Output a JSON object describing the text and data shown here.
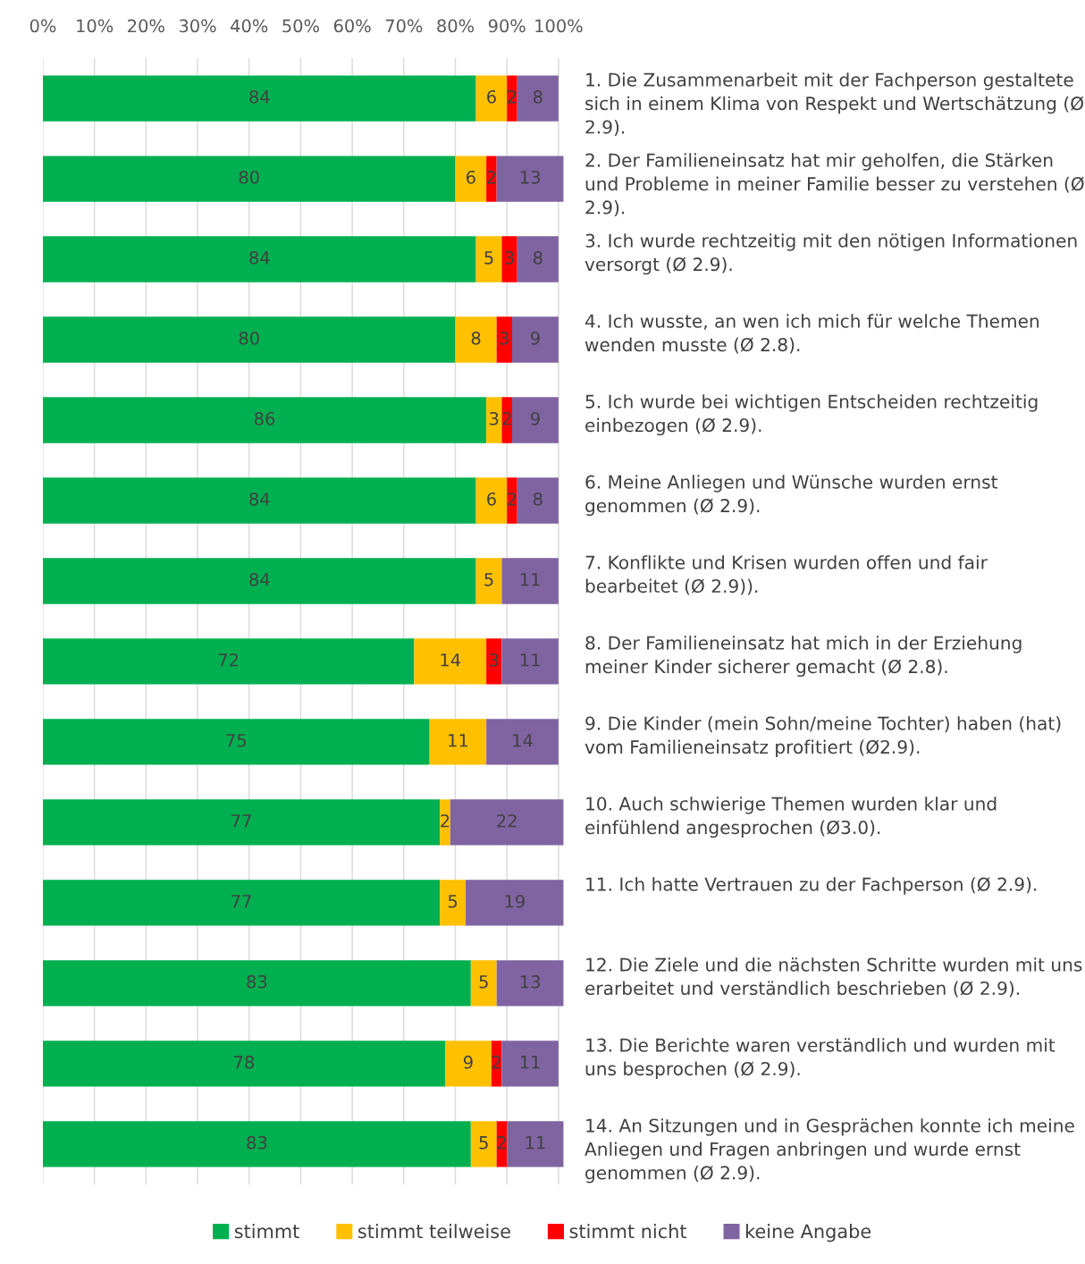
{
  "chart_data": {
    "type": "bar",
    "orientation": "horizontal",
    "stacked": true,
    "data_labels": true,
    "grid": "x",
    "legend": "bottom",
    "categories": [
      "1. Die Zusammenarbeit mit der Fachperson gestaltete sich in einem Klima von Respekt und Wertschätzung (Ø 2.9).",
      "2. Der Familieneinsatz hat mir geholfen, die Stärken und Probleme in meiner Familie besser zu verstehen (Ø 2.9).",
      "3. Ich wurde rechtzeitig mit den nötigen Informationen versorgt (Ø 2.9).",
      "4. Ich wusste, an wen ich mich für welche Themen wenden musste (Ø 2.8).",
      "5. Ich wurde bei wichtigen Entscheiden rechtzeitig einbezogen (Ø 2.9).",
      "6. Meine Anliegen und Wünsche wurden ernst genommen (Ø 2.9).",
      "7. Konflikte und Krisen wurden offen und fair bearbeitet (Ø 2.9)).",
      "8. Der Familieneinsatz hat mich in der Erziehung meiner Kinder sicherer gemacht (Ø 2.8).",
      "9. Die Kinder (mein Sohn/meine Tochter) haben (hat) vom Familieneinsatz profitiert (Ø2.9).",
      "10. Auch schwierige Themen wurden klar und einfühlend angesprochen (Ø3.0).",
      "11. Ich hatte Vertrauen zu der Fachperson (Ø 2.9).",
      "12. Die Ziele und die nächsten Schritte wurden mit uns erarbeitet und verständlich beschrieben (Ø 2.9).",
      "13. Die Berichte waren verständlich und wurden mit uns besprochen (Ø 2.9).",
      "14. An Sitzungen und in Gesprächen konnte ich meine Anliegen und Fragen anbringen und wurde ernst genommen (Ø 2.9)."
    ],
    "series": [
      {
        "name": "stimmt",
        "color": "#00b050",
        "values": [
          84,
          80,
          84,
          80,
          86,
          84,
          84,
          72,
          75,
          77,
          77,
          83,
          78,
          83
        ]
      },
      {
        "name": "stimmt teilweise",
        "color": "#ffc000",
        "values": [
          6,
          6,
          5,
          8,
          3,
          6,
          5,
          14,
          11,
          2,
          5,
          5,
          9,
          5
        ]
      },
      {
        "name": "stimmt nicht",
        "color": "#ff0000",
        "values": [
          2,
          2,
          3,
          3,
          2,
          2,
          null,
          3,
          null,
          null,
          null,
          null,
          2,
          2
        ]
      },
      {
        "name": "keine Angabe",
        "color": "#8064a2",
        "values": [
          8,
          13,
          8,
          9,
          9,
          8,
          11,
          11,
          14,
          22,
          19,
          13,
          11,
          11
        ]
      }
    ],
    "xlim": [
      0,
      101
    ],
    "xticks": [
      {
        "value": 0,
        "label": "0%"
      },
      {
        "value": 10,
        "label": "10%"
      },
      {
        "value": 20,
        "label": "20%"
      },
      {
        "value": 30,
        "label": "30%"
      },
      {
        "value": 40,
        "label": "40%"
      },
      {
        "value": 50,
        "label": "50%"
      },
      {
        "value": 60,
        "label": "60%"
      },
      {
        "value": 70,
        "label": "70%"
      },
      {
        "value": 80,
        "label": "80%"
      },
      {
        "value": 90,
        "label": "90%"
      },
      {
        "value": 100,
        "label": "100%"
      }
    ]
  }
}
